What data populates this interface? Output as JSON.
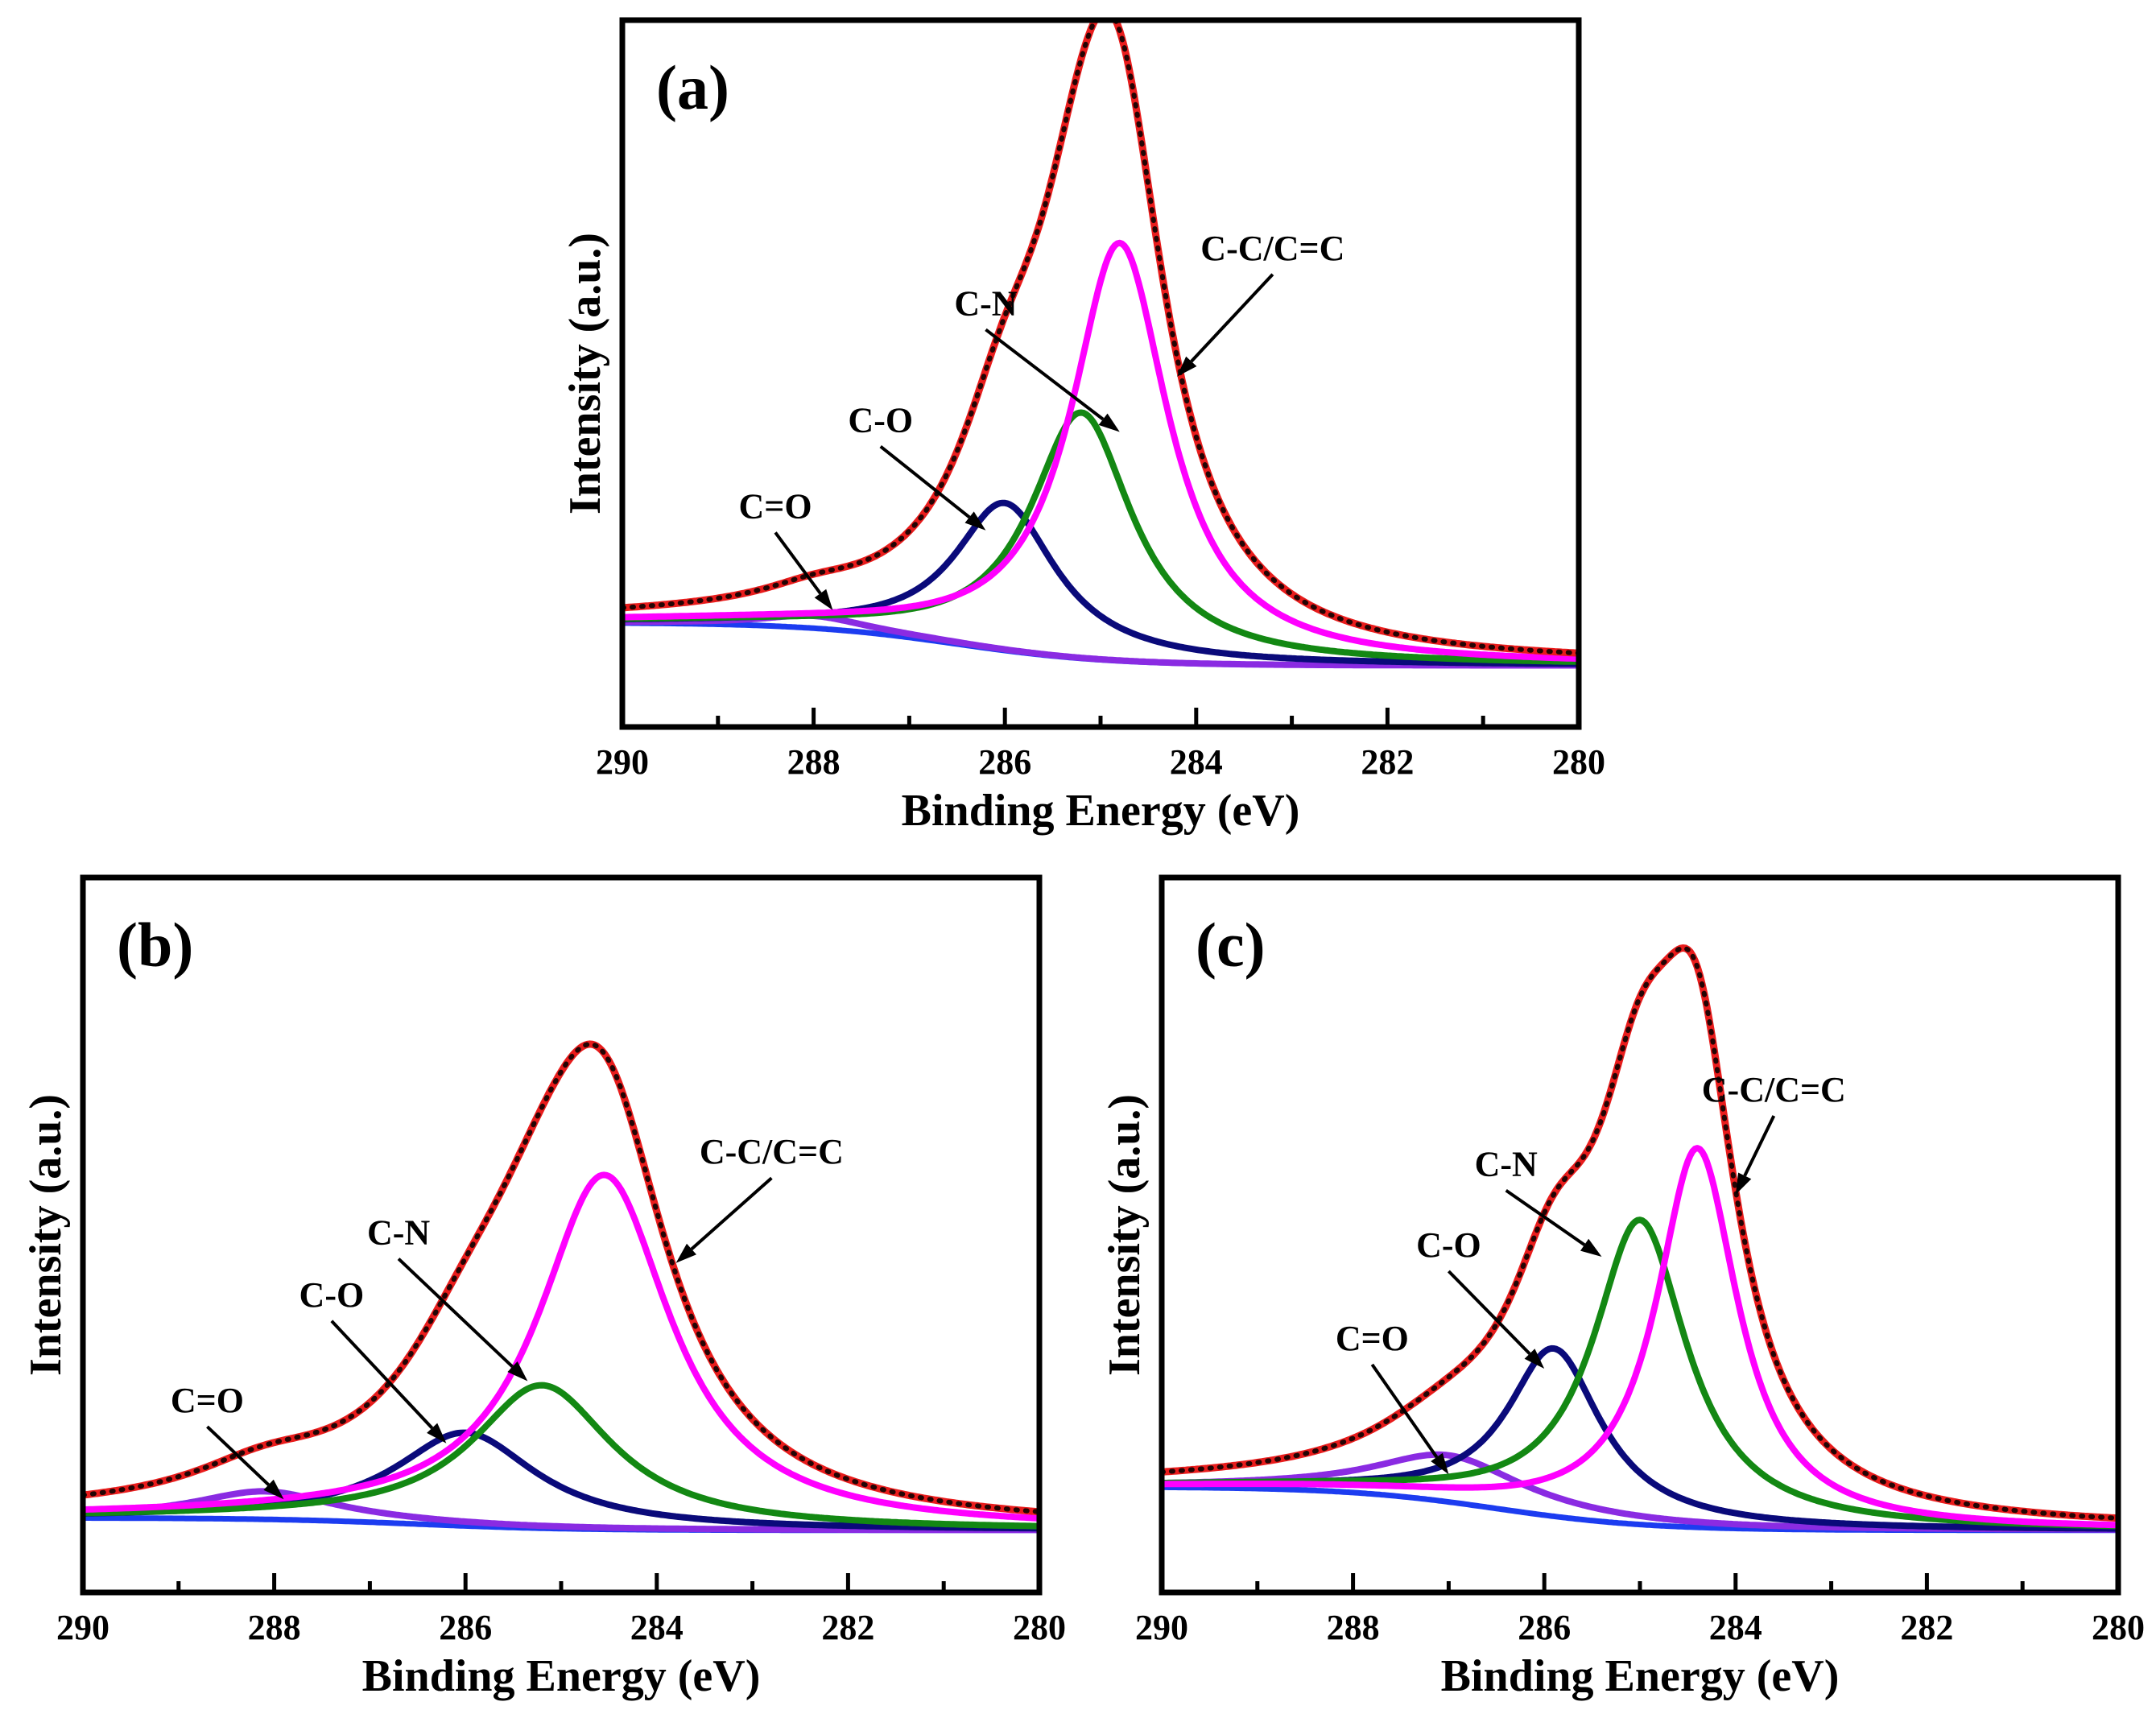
{
  "colors": {
    "envelope": "#e81c1c",
    "fit": "#000000",
    "cc": "#ff00ff",
    "cn": "#138813",
    "co": "#0a0a7a",
    "coo": "#8a2be2",
    "background": "#1c3cf0"
  },
  "chart_data": [
    {
      "panel": "(a)",
      "type": "line",
      "xlabel": "Binding Energy (eV)",
      "ylabel": "Intensity (a.u.)",
      "xlim": [
        290,
        280
      ],
      "ylim": [
        -0.1,
        1.05
      ],
      "xticks": [
        "290",
        "288",
        "286",
        "284",
        "282",
        "280"
      ],
      "bg_high": 0.07,
      "bg_low": 0.0,
      "peaks": [
        {
          "name": "C-C/C=C",
          "center": 284.8,
          "height": 0.68,
          "width": 0.62
        },
        {
          "name": "C-N",
          "center": 285.2,
          "height": 0.4,
          "width": 0.65
        },
        {
          "name": "C-O",
          "center": 286.0,
          "height": 0.24,
          "width": 0.65
        },
        {
          "name": "C=O",
          "center": 288.0,
          "height": 0.02,
          "width": 0.65
        }
      ],
      "annotations": [
        {
          "text": "C-C/C=C",
          "x": 283.2,
          "y": 0.66,
          "ax": 284.2,
          "ay": 0.47
        },
        {
          "text": "C-N",
          "x": 286.2,
          "y": 0.57,
          "ax": 284.8,
          "ay": 0.38
        },
        {
          "text": "C-O",
          "x": 287.3,
          "y": 0.38,
          "ax": 286.2,
          "ay": 0.22
        },
        {
          "text": "C=O",
          "x": 288.4,
          "y": 0.24,
          "ax": 287.8,
          "ay": 0.09
        }
      ]
    },
    {
      "panel": "(b)",
      "type": "line",
      "xlabel": "Binding Energy (eV)",
      "ylabel": "Intensity (a.u.)",
      "xlim": [
        290,
        280
      ],
      "ylim": [
        -0.1,
        1.05
      ],
      "xticks": [
        "290",
        "288",
        "286",
        "284",
        "282",
        "280"
      ],
      "bg_high": 0.02,
      "bg_low": 0.0,
      "peaks": [
        {
          "name": "C-C/C=C",
          "center": 284.55,
          "height": 0.57,
          "width": 0.85
        },
        {
          "name": "C-N",
          "center": 285.2,
          "height": 0.23,
          "width": 0.9
        },
        {
          "name": "C-O",
          "center": 286.0,
          "height": 0.15,
          "width": 0.9
        },
        {
          "name": "C=O",
          "center": 288.1,
          "height": 0.045,
          "width": 0.9
        }
      ],
      "annotations": [
        {
          "text": "C-C/C=C",
          "x": 282.8,
          "y": 0.59,
          "ax": 283.8,
          "ay": 0.43
        },
        {
          "text": "C-N",
          "x": 286.7,
          "y": 0.46,
          "ax": 285.35,
          "ay": 0.24
        },
        {
          "text": "C-O",
          "x": 287.4,
          "y": 0.36,
          "ax": 286.2,
          "ay": 0.14
        },
        {
          "text": "C=O",
          "x": 288.7,
          "y": 0.19,
          "ax": 287.9,
          "ay": 0.05
        }
      ]
    },
    {
      "panel": "(c)",
      "type": "line",
      "xlabel": "Binding Energy (eV)",
      "ylabel": "Intensity (a.u.)",
      "xlim": [
        290,
        280
      ],
      "ylim": [
        -0.1,
        1.05
      ],
      "xticks": [
        "290",
        "288",
        "286",
        "284",
        "282",
        "280"
      ],
      "bg_high": 0.07,
      "bg_low": 0.0,
      "peaks": [
        {
          "name": "C-C/C=C",
          "center": 284.4,
          "height": 0.61,
          "width": 0.52
        },
        {
          "name": "C-N",
          "center": 285.0,
          "height": 0.49,
          "width": 0.6
        },
        {
          "name": "C-O",
          "center": 285.9,
          "height": 0.27,
          "width": 0.6
        },
        {
          "name": "C=O",
          "center": 287.0,
          "height": 0.075,
          "width": 0.95
        }
      ],
      "annotations": [
        {
          "text": "C-C/C=C",
          "x": 283.6,
          "y": 0.69,
          "ax": 284.0,
          "ay": 0.54
        },
        {
          "text": "C-N",
          "x": 286.4,
          "y": 0.57,
          "ax": 285.4,
          "ay": 0.44
        },
        {
          "text": "C-O",
          "x": 287.0,
          "y": 0.44,
          "ax": 286.0,
          "ay": 0.26
        },
        {
          "text": "C=O",
          "x": 287.8,
          "y": 0.29,
          "ax": 287.0,
          "ay": 0.09
        }
      ]
    }
  ]
}
